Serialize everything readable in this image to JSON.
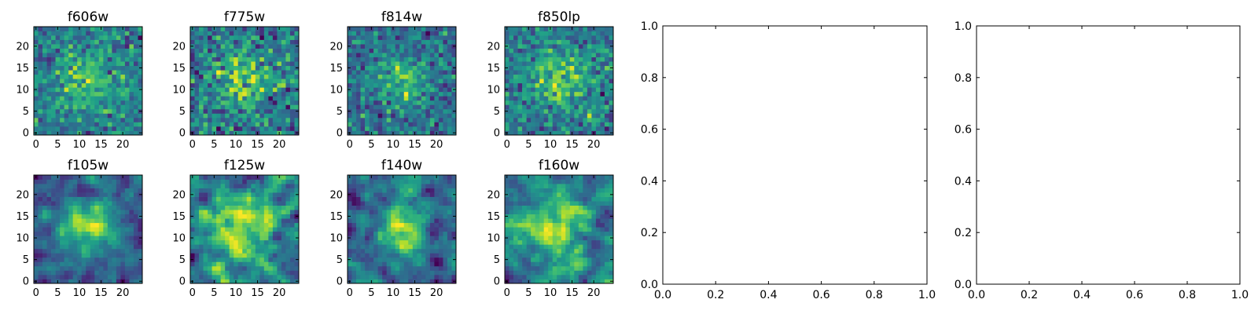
{
  "chart_data": {
    "type": "heatmap",
    "colormap": "viridis",
    "image_size": 25,
    "seed": 4242,
    "subplots": [
      {
        "id": "f606w",
        "title": "f606w",
        "type": "heatmap",
        "row": 0,
        "col": 0,
        "grid": false
      },
      {
        "id": "f775w",
        "title": "f775w",
        "type": "heatmap",
        "row": 0,
        "col": 1,
        "grid": false
      },
      {
        "id": "f814w",
        "title": "f814w",
        "type": "heatmap",
        "row": 0,
        "col": 2,
        "grid": false
      },
      {
        "id": "f850lp",
        "title": "f850lp",
        "type": "heatmap",
        "row": 0,
        "col": 3,
        "grid": false
      },
      {
        "id": "f105w",
        "title": "f105w",
        "type": "heatmap",
        "row": 1,
        "col": 0,
        "grid": false
      },
      {
        "id": "f125w",
        "title": "f125w",
        "type": "heatmap",
        "row": 1,
        "col": 1,
        "grid": false
      },
      {
        "id": "f140w",
        "title": "f140w",
        "type": "heatmap",
        "row": 1,
        "col": 2,
        "grid": false
      },
      {
        "id": "f160w",
        "title": "f160w",
        "type": "heatmap",
        "row": 1,
        "col": 3,
        "grid": false
      }
    ],
    "heatmap_axes": {
      "x_ticks": [
        "0",
        "5",
        "10",
        "15",
        "20"
      ],
      "y_ticks": [
        "0",
        "5",
        "10",
        "15",
        "20"
      ],
      "xlim": [
        -0.5,
        24.5
      ],
      "ylim": [
        -0.5,
        24.5
      ]
    },
    "empty_axes": [
      {
        "id": "empty-1",
        "title": "",
        "xlim": [
          0,
          1
        ],
        "ylim": [
          0,
          1
        ],
        "x_ticks": [
          "0.0",
          "0.2",
          "0.4",
          "0.6",
          "0.8",
          "1.0"
        ],
        "y_ticks": [
          "0.0",
          "0.2",
          "0.4",
          "0.6",
          "0.8",
          "1.0"
        ]
      },
      {
        "id": "empty-2",
        "title": "",
        "xlim": [
          0,
          1
        ],
        "ylim": [
          0,
          1
        ],
        "x_ticks": [
          "0.0",
          "0.2",
          "0.4",
          "0.6",
          "0.8",
          "1.0"
        ],
        "y_ticks": [
          "0.0",
          "0.2",
          "0.4",
          "0.6",
          "0.8",
          "1.0"
        ]
      }
    ]
  }
}
